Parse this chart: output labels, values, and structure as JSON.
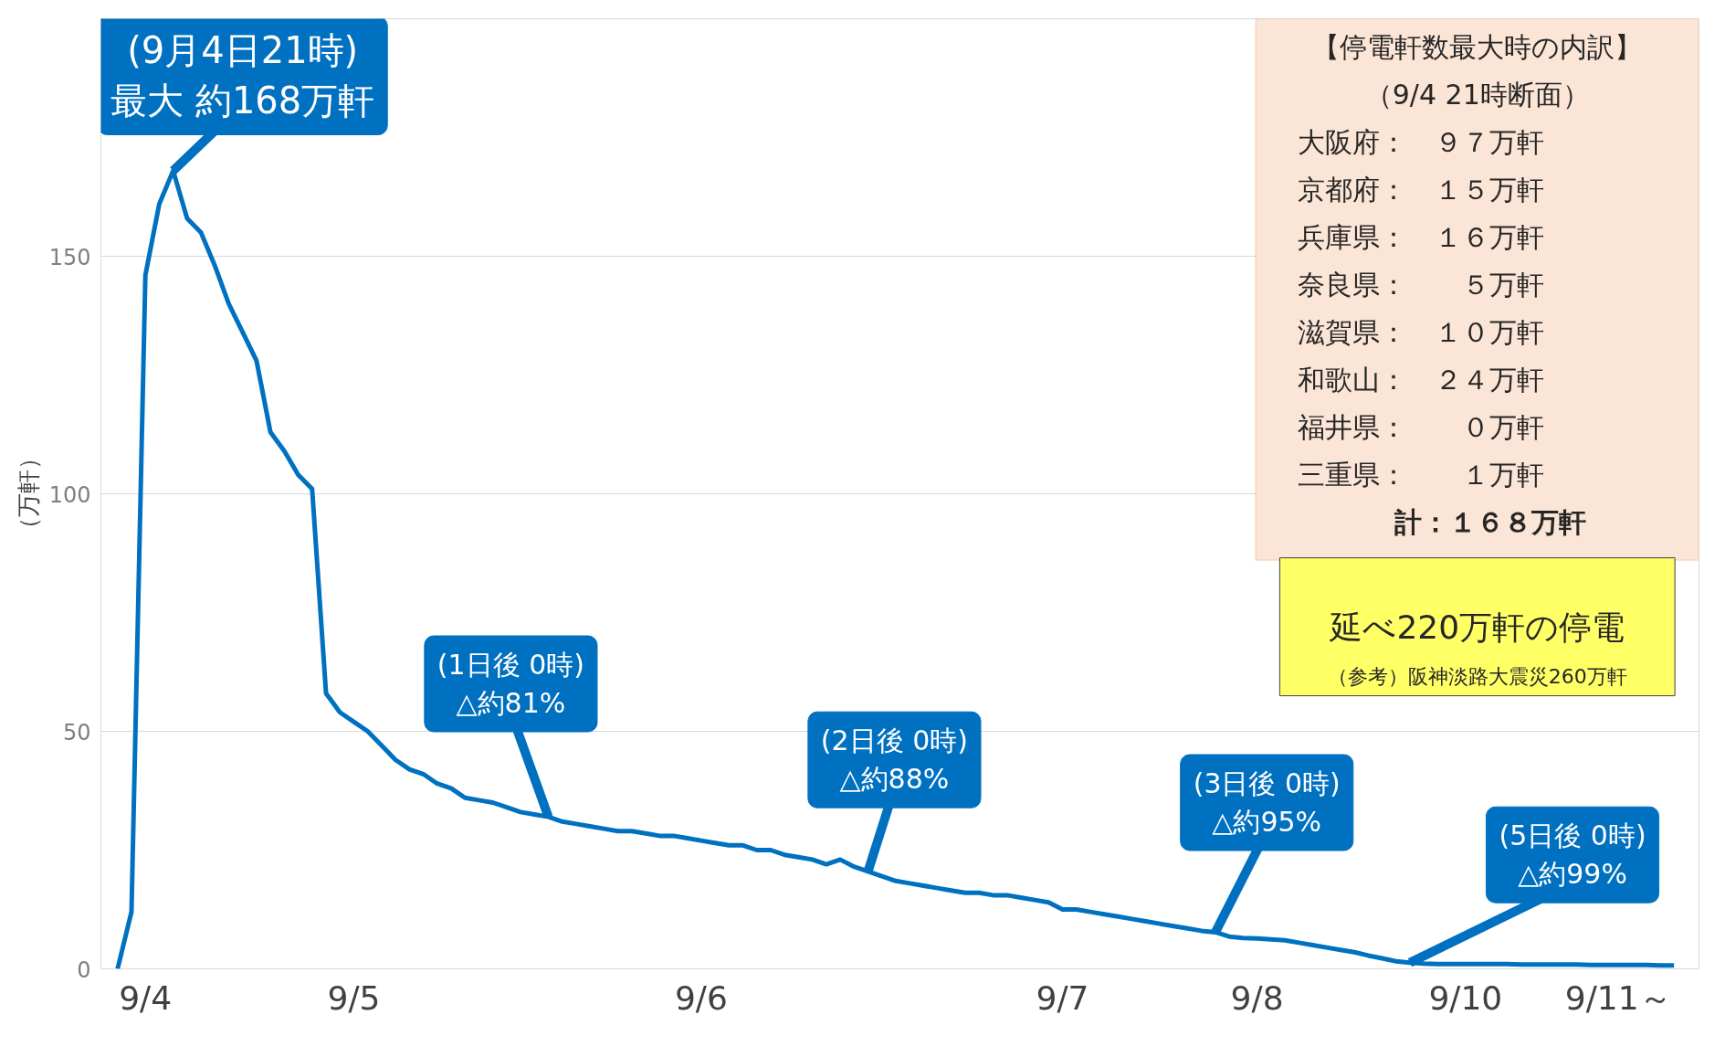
{
  "chart_data": {
    "type": "line",
    "ylabel": "（万軒）",
    "categories": [
      null,
      null,
      "9/4",
      null,
      null,
      null,
      null,
      null,
      null,
      null,
      null,
      null,
      null,
      null,
      null,
      null,
      null,
      "9/5",
      null,
      null,
      null,
      null,
      null,
      null,
      null,
      null,
      null,
      null,
      null,
      null,
      null,
      null,
      null,
      null,
      null,
      null,
      null,
      null,
      null,
      null,
      null,
      null,
      "9/6",
      null,
      null,
      null,
      null,
      null,
      null,
      null,
      null,
      null,
      null,
      null,
      null,
      null,
      null,
      null,
      null,
      null,
      null,
      null,
      null,
      null,
      null,
      null,
      null,
      null,
      "9/7",
      null,
      null,
      null,
      null,
      null,
      null,
      null,
      null,
      null,
      null,
      null,
      null,
      null,
      "9/8",
      null,
      null,
      null,
      null,
      null,
      null,
      null,
      null,
      null,
      null,
      null,
      null,
      null,
      null,
      "9/10",
      null,
      null,
      null,
      null,
      null,
      null,
      null,
      null,
      null,
      null,
      "9/11～",
      null,
      null,
      null,
      null
    ],
    "series": [
      {
        "color": "#0070c0",
        "values": [
          0,
          12,
          146,
          161,
          168,
          158,
          155,
          148,
          140,
          134,
          128,
          113,
          109,
          104,
          101,
          58,
          54,
          52,
          50,
          47,
          44,
          42,
          41,
          39,
          38,
          36,
          35.5,
          35,
          34,
          33,
          32.5,
          32,
          31,
          30.5,
          30,
          29.5,
          29,
          29,
          28.5,
          28,
          28,
          27.5,
          27,
          26.5,
          26,
          26,
          25,
          25,
          24,
          23.5,
          23,
          22,
          23,
          21.5,
          20.5,
          19.5,
          18.5,
          18,
          17.5,
          17,
          16.5,
          16,
          16,
          15.5,
          15.5,
          15,
          14.5,
          14,
          12.5,
          12.5,
          12,
          11.5,
          11,
          10.5,
          10,
          9.5,
          9,
          8.5,
          8,
          7.7,
          6.8,
          6.5,
          6.4,
          6.2,
          6,
          5.5,
          5,
          4.5,
          4,
          3.5,
          2.8,
          2.2,
          1.6,
          1.3,
          1.1,
          1,
          1,
          1,
          1,
          1,
          1,
          0.9,
          0.9,
          0.9,
          0.9,
          0.9,
          0.8,
          0.8,
          0.8,
          0.8,
          0.8,
          0.7,
          0.7
        ]
      }
    ],
    "ylim": [
      0,
      200
    ],
    "yticks": [
      0,
      50,
      100,
      150
    ],
    "grid": "y",
    "annotations": [
      "(9月4日21時)\n最大 約168万軒",
      "(1日後 0時)\n△約81%",
      "(2日後 0時)\n△約88%",
      "(3日後 0時)\n△約95%",
      "(5日後 0時)\n△約99%",
      "【停電軒数最大時の内訳】",
      "（9/4 21時断面）",
      "大阪府：　９７万軒",
      "京都府：　１５万軒",
      "兵庫県：　１６万軒",
      "奈良県：　　５万軒",
      "滋賀県：　１０万軒",
      "和歌山：　２４万軒",
      "福井県：　　０万軒",
      "三重県：　　１万軒",
      "計：１６８万軒",
      "延べ220万軒の停電",
      "（参考）阪神淡路大震災260万軒"
    ]
  }
}
